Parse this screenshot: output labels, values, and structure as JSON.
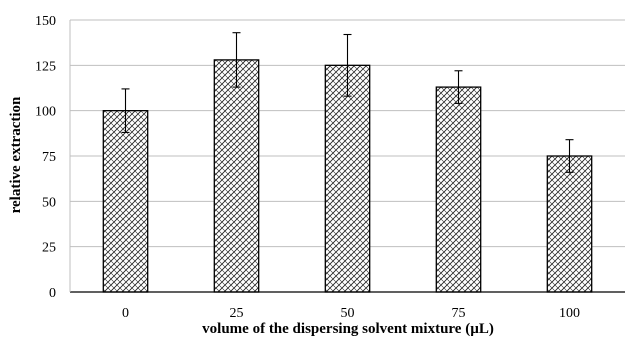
{
  "chart_data": {
    "type": "bar",
    "categories": [
      "0",
      "25",
      "50",
      "75",
      "100"
    ],
    "values": [
      100,
      128,
      125,
      113,
      75
    ],
    "error_upper": [
      112,
      143,
      142,
      122,
      84
    ],
    "error_lower": [
      88,
      113,
      108,
      104,
      66
    ],
    "xlabel": "volume of the dispersing solvent mixture (µL)",
    "ylabel": "relative extraction",
    "ylim": [
      0,
      150
    ],
    "yticks": [
      0,
      25,
      50,
      75,
      100,
      125,
      150
    ],
    "grid": true,
    "legend": "none",
    "bar_fill": "crosshatch",
    "colors": {
      "bar_stroke": "#000000",
      "hatch": "#222222",
      "grid": "#bfbfbf",
      "axis": "#000000"
    }
  }
}
